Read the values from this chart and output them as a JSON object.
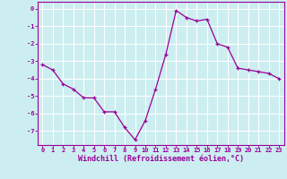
{
  "x": [
    0,
    1,
    2,
    3,
    4,
    5,
    6,
    7,
    8,
    9,
    10,
    11,
    12,
    13,
    14,
    15,
    16,
    17,
    18,
    19,
    20,
    21,
    22,
    23
  ],
  "y": [
    -3.2,
    -3.5,
    -4.3,
    -4.6,
    -5.1,
    -5.1,
    -5.9,
    -5.9,
    -6.8,
    -7.5,
    -6.4,
    -4.6,
    -2.6,
    -0.1,
    -0.5,
    -0.7,
    -0.6,
    -2.0,
    -2.2,
    -3.4,
    -3.5,
    -3.6,
    -3.7,
    -4.0
  ],
  "line_color": "#990099",
  "marker_color": "#990099",
  "bg_color": "#cceef0",
  "grid_color": "#ffffff",
  "xlabel": "Windchill (Refroidissement éolien,°C)",
  "xlabel_color": "#990099",
  "tick_color": "#990099",
  "spine_color": "#990099",
  "ylim": [
    -7.8,
    0.4
  ],
  "xlim": [
    -0.5,
    23.5
  ],
  "yticks": [
    0,
    -1,
    -2,
    -3,
    -4,
    -5,
    -6,
    -7
  ],
  "xticks": [
    0,
    1,
    2,
    3,
    4,
    5,
    6,
    7,
    8,
    9,
    10,
    11,
    12,
    13,
    14,
    15,
    16,
    17,
    18,
    19,
    20,
    21,
    22,
    23
  ],
  "xtick_labels": [
    "0",
    "1",
    "2",
    "3",
    "4",
    "5",
    "6",
    "7",
    "8",
    "9",
    "10",
    "11",
    "12",
    "13",
    "14",
    "15",
    "16",
    "17",
    "18",
    "19",
    "20",
    "21",
    "22",
    "23"
  ],
  "ytick_labels": [
    "0",
    "-1",
    "-2",
    "-3",
    "-4",
    "-5",
    "-6",
    "-7"
  ]
}
